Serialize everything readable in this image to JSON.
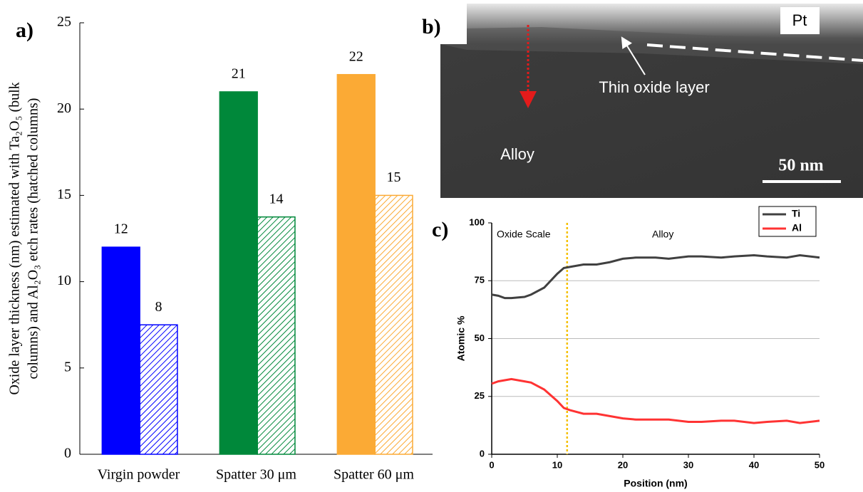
{
  "chart_data": [
    {
      "type": "bar",
      "panel_label": "a)",
      "ylabel": [
        "Oxide layer thickness (nm) estimated with Ta₂O₅ (bulk",
        "columns) and Al₂O₃ etch rates (hatched columns)"
      ],
      "categories": [
        "Virgin powder",
        "Spatter 30 μm",
        "Spatter 60 μm"
      ],
      "series": [
        {
          "colors": [
            "#0000ff",
            "#00883a",
            "#fbaa35"
          ],
          "pattern": "solid",
          "values": [
            12,
            21,
            22
          ]
        },
        {
          "colors": [
            "#0000ff",
            "#00883a",
            "#fbaa35"
          ],
          "pattern": "hatched",
          "values": [
            7.5,
            13.75,
            15
          ],
          "value_labels": [
            "8",
            "14",
            "15"
          ]
        }
      ],
      "ylim": [
        0,
        25
      ],
      "yticks": [
        0,
        5,
        10,
        15,
        20,
        25
      ]
    },
    {
      "type": "image",
      "panel_label": "b)",
      "annotations": [
        "Pt",
        "Thin oxide layer",
        "Alloy",
        "50 nm"
      ]
    },
    {
      "type": "line",
      "panel_label": "c)",
      "xlabel": "Position (nm)",
      "ylabel": "Atomic %",
      "annotations": [
        "Oxide Scale",
        "Alloy"
      ],
      "x": [
        0,
        1,
        2,
        3,
        5,
        6,
        8,
        10,
        11,
        12,
        14,
        16,
        18,
        20,
        22,
        25,
        27,
        30,
        32,
        35,
        37,
        40,
        42,
        45,
        47,
        50
      ],
      "series": [
        {
          "name": "Ti",
          "color": "#404040",
          "values": [
            69,
            68.5,
            67.5,
            67.5,
            68,
            69,
            72,
            78,
            80.5,
            81,
            82,
            82,
            83,
            84.5,
            85,
            85,
            84.5,
            85.5,
            85.5,
            85,
            85.5,
            86,
            85.5,
            85,
            86,
            85
          ]
        },
        {
          "name": "Al",
          "color": "#ff3333",
          "values": [
            30.5,
            31.5,
            32,
            32.5,
            31.5,
            31,
            28,
            23,
            20,
            19,
            17.5,
            17.5,
            16.5,
            15.5,
            15,
            15,
            15,
            14,
            14,
            14.5,
            14.5,
            13.5,
            14,
            14.5,
            13.5,
            14.5
          ]
        }
      ],
      "vline": 11.5,
      "vline_color": "#f5c000",
      "xlim": [
        0,
        50
      ],
      "xticks": [
        0,
        10,
        20,
        30,
        40,
        50
      ],
      "ylim": [
        0,
        100
      ],
      "yticks": [
        0,
        25,
        50,
        75,
        100
      ],
      "grid": true,
      "legend": "top right"
    }
  ]
}
